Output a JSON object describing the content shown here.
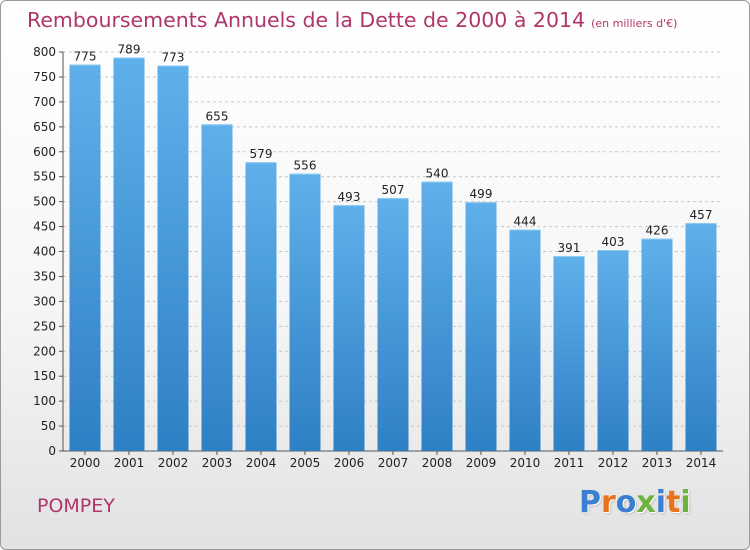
{
  "title": "Remboursements Annuels de la Dette de 2000 à 2014",
  "subtitle": "(en milliers d'€)",
  "location": "POMPEY",
  "logo": {
    "text": "Proxiti",
    "letter_colors": [
      "#3b7fd0",
      "#e8731f",
      "#3b7fd0",
      "#6db33f",
      "#3b7fd0",
      "#e8731f",
      "#6db33f"
    ]
  },
  "colors": {
    "title": "#b0356a",
    "bar_top": "#5fb0ea",
    "bar_bottom": "#2f7fc4"
  },
  "chart_data": {
    "type": "bar",
    "title": "Remboursements Annuels de la Dette de 2000 à 2014",
    "xlabel": "",
    "ylabel": "",
    "categories": [
      "2000",
      "2001",
      "2002",
      "2003",
      "2004",
      "2005",
      "2006",
      "2007",
      "2008",
      "2009",
      "2010",
      "2011",
      "2012",
      "2013",
      "2014"
    ],
    "values": [
      775,
      789,
      773,
      655,
      579,
      556,
      493,
      507,
      540,
      499,
      444,
      391,
      403,
      426,
      457
    ],
    "ylim": [
      0,
      800
    ],
    "yticks": [
      0,
      50,
      100,
      150,
      200,
      250,
      300,
      350,
      400,
      450,
      500,
      550,
      600,
      650,
      700,
      750,
      800
    ],
    "grid": true,
    "data_labels": true,
    "legend": "none"
  }
}
